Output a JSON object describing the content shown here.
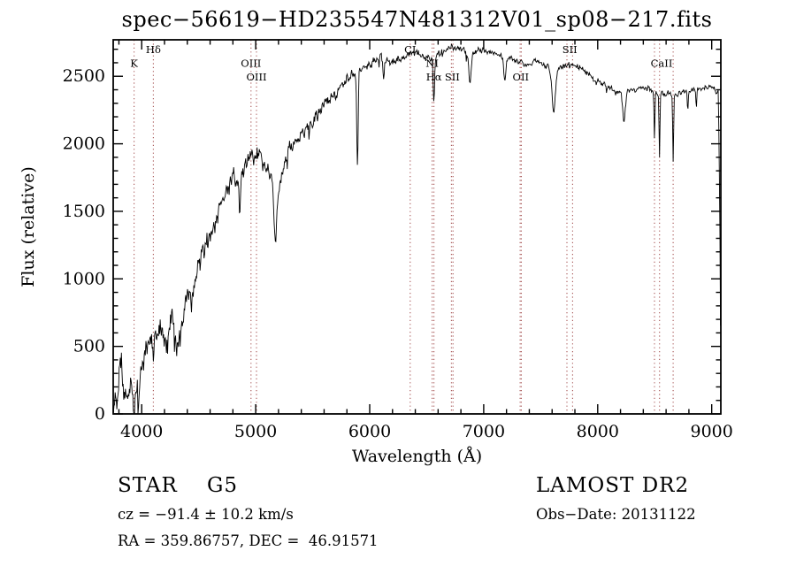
{
  "title": "spec−56619−HD235547N481312V01_sp08−217.fits",
  "annotations": {
    "class_label": "STAR    G5",
    "survey": "LAMOST DR2",
    "cz": "cz = −91.4 ± 10.2 km/s",
    "obs_date": "Obs−Date: 20131122",
    "coords": "RA = 359.86757, DEC =  46.91571"
  },
  "chart_data": {
    "type": "line",
    "title": "spec−56619−HD235547N481312V01_sp08−217.fits",
    "xlabel": "Wavelength (Å)",
    "ylabel": "Flux (relative)",
    "xlim": [
      3750,
      9080
    ],
    "ylim": [
      0,
      2770
    ],
    "x_ticks": [
      4000,
      5000,
      6000,
      7000,
      8000,
      9000
    ],
    "x_minor_step": 200,
    "y_ticks": [
      0,
      500,
      1000,
      1500,
      2000,
      2500
    ],
    "y_minor_step": 100,
    "grid": false,
    "legend": false,
    "line_color": "#000000",
    "spectral_line_color": "#a65353",
    "spectral_line_label_color": "#1a1a1a",
    "spectral_lines": [
      {
        "label": "K",
        "row": 1,
        "label_at": 3933,
        "wavelengths": [
          3933
        ]
      },
      {
        "label": "Hδ",
        "row": 0,
        "label_at": 4102,
        "wavelengths": [
          4102
        ]
      },
      {
        "label": "OIII",
        "row": 1,
        "label_at": 4959,
        "wavelengths": [
          4959
        ]
      },
      {
        "label": "OIII",
        "row": 2,
        "label_at": 5007,
        "wavelengths": [
          5007
        ]
      },
      {
        "label": "CI",
        "row": 0,
        "label_at": 6355,
        "wavelengths": [
          6355
        ]
      },
      {
        "label": "NI",
        "row": 1,
        "label_at": 6548,
        "wavelengths": [
          6548
        ]
      },
      {
        "label": "Hα",
        "row": 2,
        "label_at": 6563,
        "wavelengths": [
          6563
        ]
      },
      {
        "label": "SII",
        "row": 2,
        "label_at": 6724,
        "wavelengths": [
          6717,
          6731
        ]
      },
      {
        "label": "OII",
        "row": 2,
        "label_at": 7325,
        "wavelengths": [
          7320,
          7330
        ]
      },
      {
        "label": "SII",
        "row": 0,
        "label_at": 7755,
        "wavelengths": [
          7730,
          7780
        ]
      },
      {
        "label": "CaII",
        "row": 1,
        "label_at": 8560,
        "wavelengths": [
          8498,
          8542,
          8662
        ]
      }
    ],
    "series_name": "flux",
    "envelope": [
      [
        3752,
        20
      ],
      [
        3770,
        140
      ],
      [
        3785,
        60
      ],
      [
        3800,
        260
      ],
      [
        3820,
        430
      ],
      [
        3835,
        140
      ],
      [
        3850,
        70
      ],
      [
        3868,
        210
      ],
      [
        3885,
        120
      ],
      [
        3905,
        240
      ],
      [
        3933,
        130
      ],
      [
        3955,
        270
      ],
      [
        3980,
        320
      ],
      [
        4010,
        380
      ],
      [
        4040,
        470
      ],
      [
        4070,
        530
      ],
      [
        4100,
        555
      ],
      [
        4140,
        585
      ],
      [
        4180,
        610
      ],
      [
        4220,
        600
      ],
      [
        4260,
        650
      ],
      [
        4300,
        615
      ],
      [
        4340,
        650
      ],
      [
        4380,
        760
      ],
      [
        4420,
        860
      ],
      [
        4460,
        960
      ],
      [
        4500,
        1060
      ],
      [
        4550,
        1200
      ],
      [
        4600,
        1310
      ],
      [
        4650,
        1430
      ],
      [
        4700,
        1560
      ],
      [
        4750,
        1660
      ],
      [
        4800,
        1730
      ],
      [
        4860,
        1760
      ],
      [
        4900,
        1830
      ],
      [
        4950,
        1900
      ],
      [
        5000,
        1930
      ],
      [
        5050,
        1880
      ],
      [
        5110,
        1820
      ],
      [
        5150,
        1700
      ],
      [
        5175,
        1550
      ],
      [
        5210,
        1680
      ],
      [
        5250,
        1870
      ],
      [
        5300,
        1980
      ],
      [
        5350,
        2020
      ],
      [
        5400,
        2080
      ],
      [
        5450,
        2130
      ],
      [
        5500,
        2180
      ],
      [
        5550,
        2230
      ],
      [
        5600,
        2280
      ],
      [
        5650,
        2330
      ],
      [
        5700,
        2380
      ],
      [
        5750,
        2430
      ],
      [
        5800,
        2480
      ],
      [
        5850,
        2515
      ],
      [
        5900,
        2530
      ],
      [
        5950,
        2560
      ],
      [
        6000,
        2590
      ],
      [
        6050,
        2615
      ],
      [
        6100,
        2640
      ],
      [
        6150,
        2620
      ],
      [
        6200,
        2605
      ],
      [
        6250,
        2620
      ],
      [
        6300,
        2640
      ],
      [
        6350,
        2660
      ],
      [
        6400,
        2680
      ],
      [
        6450,
        2665
      ],
      [
        6500,
        2645
      ],
      [
        6550,
        2630
      ],
      [
        6600,
        2660
      ],
      [
        6650,
        2690
      ],
      [
        6700,
        2710
      ],
      [
        6760,
        2720
      ],
      [
        6820,
        2700
      ],
      [
        6880,
        2660
      ],
      [
        6940,
        2690
      ],
      [
        7000,
        2700
      ],
      [
        7060,
        2680
      ],
      [
        7120,
        2655
      ],
      [
        7180,
        2635
      ],
      [
        7240,
        2640
      ],
      [
        7300,
        2605
      ],
      [
        7360,
        2590
      ],
      [
        7420,
        2600
      ],
      [
        7480,
        2615
      ],
      [
        7540,
        2590
      ],
      [
        7600,
        2520
      ],
      [
        7660,
        2560
      ],
      [
        7720,
        2580
      ],
      [
        7780,
        2590
      ],
      [
        7840,
        2570
      ],
      [
        7900,
        2525
      ],
      [
        7960,
        2480
      ],
      [
        8020,
        2450
      ],
      [
        8080,
        2420
      ],
      [
        8140,
        2400
      ],
      [
        8200,
        2380
      ],
      [
        8260,
        2390
      ],
      [
        8320,
        2400
      ],
      [
        8380,
        2415
      ],
      [
        8440,
        2405
      ],
      [
        8500,
        2380
      ],
      [
        8560,
        2370
      ],
      [
        8620,
        2380
      ],
      [
        8680,
        2365
      ],
      [
        8740,
        2375
      ],
      [
        8800,
        2395
      ],
      [
        8860,
        2410
      ],
      [
        8920,
        2420
      ],
      [
        8980,
        2415
      ],
      [
        9030,
        2405
      ],
      [
        9058,
        2390
      ],
      [
        9070,
        1600
      ],
      [
        9078,
        520
      ]
    ],
    "absorption_dips": [
      [
        3933,
        140,
        5
      ],
      [
        3968,
        110,
        5
      ],
      [
        4102,
        130,
        5
      ],
      [
        4227,
        150,
        5
      ],
      [
        4310,
        170,
        9
      ],
      [
        4340,
        150,
        5
      ],
      [
        4861,
        230,
        6
      ],
      [
        5172,
        300,
        9
      ],
      [
        5893,
        680,
        6
      ],
      [
        6122,
        150,
        6
      ],
      [
        6563,
        330,
        6
      ],
      [
        6880,
        210,
        10
      ],
      [
        7186,
        170,
        9
      ],
      [
        7615,
        290,
        14
      ],
      [
        8230,
        240,
        10
      ],
      [
        8498,
        350,
        4
      ],
      [
        8542,
        460,
        4
      ],
      [
        8662,
        520,
        4
      ],
      [
        8790,
        170,
        4
      ],
      [
        8865,
        140,
        4
      ]
    ],
    "noise": {
      "seed": 987654321,
      "step": 5,
      "spike_probability": 0.05,
      "spike_scale": 2.6,
      "amp_profile": [
        [
          3750,
          140
        ],
        [
          4300,
          140
        ],
        [
          4700,
          110
        ],
        [
          5400,
          75
        ],
        [
          6100,
          45
        ],
        [
          7000,
          33
        ],
        [
          9080,
          30
        ]
      ]
    }
  }
}
